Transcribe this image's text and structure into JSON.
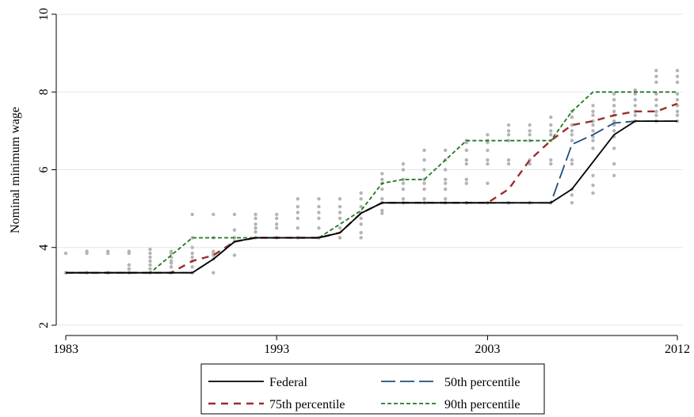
{
  "chart_data": {
    "type": "line",
    "title": "",
    "xlabel": "",
    "ylabel": "Nominal minimum wage",
    "xlim": [
      1983,
      2012
    ],
    "ylim": [
      2,
      10
    ],
    "xticks": [
      1983,
      1993,
      2003,
      2012
    ],
    "yticks": [
      2,
      4,
      6,
      8,
      10
    ],
    "grid": true,
    "legend_position": "bottom",
    "colors": {
      "federal": "#000000",
      "p50": "#1f4e79",
      "p75": "#9b2d2d",
      "p90": "#1e7a1e",
      "state_points": "#b4b4b4",
      "grid": "#e6e6e6"
    },
    "series": [
      {
        "name": "Federal",
        "key": "federal",
        "style": "solid",
        "points": [
          [
            1983,
            3.35
          ],
          [
            1984,
            3.35
          ],
          [
            1985,
            3.35
          ],
          [
            1986,
            3.35
          ],
          [
            1987,
            3.35
          ],
          [
            1988,
            3.35
          ],
          [
            1989,
            3.35
          ],
          [
            1990,
            3.7
          ],
          [
            1991,
            4.15
          ],
          [
            1992,
            4.25
          ],
          [
            1993,
            4.25
          ],
          [
            1994,
            4.25
          ],
          [
            1995,
            4.25
          ],
          [
            1996,
            4.38
          ],
          [
            1997,
            4.88
          ],
          [
            1998,
            5.15
          ],
          [
            1999,
            5.15
          ],
          [
            2000,
            5.15
          ],
          [
            2001,
            5.15
          ],
          [
            2002,
            5.15
          ],
          [
            2003,
            5.15
          ],
          [
            2004,
            5.15
          ],
          [
            2005,
            5.15
          ],
          [
            2006,
            5.15
          ],
          [
            2007,
            5.5
          ],
          [
            2008,
            6.2
          ],
          [
            2009,
            6.9
          ],
          [
            2010,
            7.25
          ],
          [
            2011,
            7.25
          ],
          [
            2012,
            7.25
          ]
        ]
      },
      {
        "name": "50th percentile",
        "key": "p50",
        "style": "longdash",
        "points": [
          [
            1983,
            3.35
          ],
          [
            1984,
            3.35
          ],
          [
            1985,
            3.35
          ],
          [
            1986,
            3.35
          ],
          [
            1987,
            3.35
          ],
          [
            1988,
            3.35
          ],
          [
            1989,
            3.35
          ],
          [
            1990,
            3.7
          ],
          [
            1991,
            4.15
          ],
          [
            1992,
            4.25
          ],
          [
            1993,
            4.25
          ],
          [
            1994,
            4.25
          ],
          [
            1995,
            4.25
          ],
          [
            1996,
            4.38
          ],
          [
            1997,
            4.88
          ],
          [
            1998,
            5.15
          ],
          [
            1999,
            5.15
          ],
          [
            2000,
            5.15
          ],
          [
            2001,
            5.15
          ],
          [
            2002,
            5.15
          ],
          [
            2003,
            5.15
          ],
          [
            2004,
            5.15
          ],
          [
            2005,
            5.15
          ],
          [
            2006,
            5.15
          ],
          [
            2007,
            6.65
          ],
          [
            2008,
            6.9
          ],
          [
            2009,
            7.2
          ],
          [
            2010,
            7.25
          ],
          [
            2011,
            7.25
          ],
          [
            2012,
            7.25
          ]
        ]
      },
      {
        "name": "75th percentile",
        "key": "p75",
        "style": "dash",
        "points": [
          [
            1983,
            3.35
          ],
          [
            1984,
            3.35
          ],
          [
            1985,
            3.35
          ],
          [
            1986,
            3.35
          ],
          [
            1987,
            3.35
          ],
          [
            1988,
            3.35
          ],
          [
            1989,
            3.65
          ],
          [
            1990,
            3.8
          ],
          [
            1991,
            4.15
          ],
          [
            1992,
            4.25
          ],
          [
            1993,
            4.25
          ],
          [
            1994,
            4.25
          ],
          [
            1995,
            4.25
          ],
          [
            1996,
            4.38
          ],
          [
            1997,
            4.88
          ],
          [
            1998,
            5.15
          ],
          [
            1999,
            5.15
          ],
          [
            2000,
            5.15
          ],
          [
            2001,
            5.15
          ],
          [
            2002,
            5.15
          ],
          [
            2003,
            5.15
          ],
          [
            2004,
            5.5
          ],
          [
            2005,
            6.25
          ],
          [
            2006,
            6.75
          ],
          [
            2007,
            7.15
          ],
          [
            2008,
            7.25
          ],
          [
            2009,
            7.4
          ],
          [
            2010,
            7.5
          ],
          [
            2011,
            7.5
          ],
          [
            2012,
            7.7
          ]
        ]
      },
      {
        "name": "90th percentile",
        "key": "p90",
        "style": "shortdash",
        "points": [
          [
            1983,
            3.35
          ],
          [
            1984,
            3.35
          ],
          [
            1985,
            3.35
          ],
          [
            1986,
            3.35
          ],
          [
            1987,
            3.35
          ],
          [
            1988,
            3.8
          ],
          [
            1989,
            4.25
          ],
          [
            1990,
            4.25
          ],
          [
            1991,
            4.25
          ],
          [
            1992,
            4.25
          ],
          [
            1993,
            4.25
          ],
          [
            1994,
            4.25
          ],
          [
            1995,
            4.25
          ],
          [
            1996,
            4.6
          ],
          [
            1997,
            4.95
          ],
          [
            1998,
            5.65
          ],
          [
            1999,
            5.75
          ],
          [
            2000,
            5.75
          ],
          [
            2001,
            6.25
          ],
          [
            2002,
            6.75
          ],
          [
            2003,
            6.75
          ],
          [
            2004,
            6.75
          ],
          [
            2005,
            6.75
          ],
          [
            2006,
            6.75
          ],
          [
            2007,
            7.5
          ],
          [
            2008,
            8.0
          ],
          [
            2009,
            8.0
          ],
          [
            2010,
            8.0
          ],
          [
            2011,
            8.0
          ],
          [
            2012,
            8.0
          ]
        ]
      }
    ],
    "legend_order": [
      "Federal",
      "50th percentile",
      "75th percentile",
      "90th percentile"
    ],
    "state_points": [
      {
        "x": 1983,
        "y": [
          3.35,
          3.35,
          3.35,
          3.85
        ]
      },
      {
        "x": 1984,
        "y": [
          3.35,
          3.35,
          3.35,
          3.85,
          3.9
        ]
      },
      {
        "x": 1985,
        "y": [
          3.35,
          3.35,
          3.35,
          3.85,
          3.9
        ]
      },
      {
        "x": 1986,
        "y": [
          3.35,
          3.35,
          3.35,
          3.45,
          3.55,
          3.85,
          3.9
        ]
      },
      {
        "x": 1987,
        "y": [
          3.35,
          3.35,
          3.45,
          3.55,
          3.65,
          3.75,
          3.85,
          3.95
        ]
      },
      {
        "x": 1988,
        "y": [
          3.35,
          3.35,
          3.5,
          3.6,
          3.65,
          3.75,
          3.85,
          3.9
        ]
      },
      {
        "x": 1989,
        "y": [
          3.35,
          3.5,
          3.65,
          3.75,
          3.85,
          4.0,
          4.25,
          4.85
        ]
      },
      {
        "x": 1990,
        "y": [
          3.35,
          3.7,
          3.8,
          3.85,
          3.9,
          4.25,
          4.85
        ]
      },
      {
        "x": 1991,
        "y": [
          3.8,
          4.15,
          4.25,
          4.25,
          4.45,
          4.85
        ]
      },
      {
        "x": 1992,
        "y": [
          4.25,
          4.25,
          4.25,
          4.4,
          4.5,
          4.6,
          4.75,
          4.85
        ]
      },
      {
        "x": 1993,
        "y": [
          4.25,
          4.25,
          4.25,
          4.5,
          4.6,
          4.75,
          4.85
        ]
      },
      {
        "x": 1994,
        "y": [
          4.25,
          4.25,
          4.25,
          4.5,
          4.75,
          4.9,
          5.05,
          5.25
        ]
      },
      {
        "x": 1995,
        "y": [
          4.25,
          4.25,
          4.25,
          4.5,
          4.75,
          4.9,
          5.05,
          5.25
        ]
      },
      {
        "x": 1996,
        "y": [
          4.25,
          4.25,
          4.25,
          4.5,
          4.75,
          4.9,
          5.05,
          5.25
        ]
      },
      {
        "x": 1997,
        "y": [
          4.25,
          4.38,
          4.6,
          4.75,
          4.9,
          5.05,
          5.25,
          5.4
        ]
      },
      {
        "x": 1998,
        "y": [
          4.88,
          4.95,
          5.15,
          5.25,
          5.5,
          5.65,
          5.75,
          5.9
        ]
      },
      {
        "x": 1999,
        "y": [
          5.15,
          5.15,
          5.25,
          5.5,
          5.65,
          5.75,
          6.0,
          6.15
        ]
      },
      {
        "x": 2000,
        "y": [
          5.15,
          5.15,
          5.25,
          5.5,
          5.65,
          5.75,
          6.0,
          6.25,
          6.5
        ]
      },
      {
        "x": 2001,
        "y": [
          5.15,
          5.15,
          5.25,
          5.5,
          5.65,
          5.75,
          6.0,
          6.25,
          6.5
        ]
      },
      {
        "x": 2002,
        "y": [
          5.15,
          5.15,
          5.65,
          5.75,
          6.15,
          6.25,
          6.5,
          6.7,
          6.75
        ]
      },
      {
        "x": 2003,
        "y": [
          5.15,
          5.15,
          5.65,
          6.15,
          6.25,
          6.5,
          6.7,
          6.75,
          6.9
        ]
      },
      {
        "x": 2004,
        "y": [
          5.15,
          5.15,
          6.15,
          6.25,
          6.75,
          6.9,
          7.0,
          7.15
        ]
      },
      {
        "x": 2005,
        "y": [
          5.15,
          5.15,
          6.15,
          6.25,
          6.75,
          6.9,
          7.0,
          7.15
        ]
      },
      {
        "x": 2006,
        "y": [
          5.15,
          5.15,
          6.15,
          6.25,
          6.75,
          6.9,
          7.0,
          7.15,
          7.35
        ]
      },
      {
        "x": 2007,
        "y": [
          5.15,
          5.35,
          5.5,
          6.15,
          6.25,
          6.75,
          6.9,
          7.0,
          7.15,
          7.35,
          7.5
        ]
      },
      {
        "x": 2008,
        "y": [
          5.4,
          5.6,
          5.85,
          6.55,
          6.75,
          6.85,
          7.0,
          7.15,
          7.25,
          7.4,
          7.5,
          7.65
        ]
      },
      {
        "x": 2009,
        "y": [
          5.85,
          6.15,
          6.55,
          6.85,
          7.0,
          7.15,
          7.25,
          7.4,
          7.5,
          7.65,
          7.8,
          7.95
        ]
      },
      {
        "x": 2010,
        "y": [
          7.25,
          7.25,
          7.4,
          7.5,
          7.65,
          7.8,
          7.95,
          8.05
        ]
      },
      {
        "x": 2011,
        "y": [
          7.25,
          7.25,
          7.4,
          7.5,
          7.65,
          7.8,
          7.95,
          8.25,
          8.4,
          8.55
        ]
      },
      {
        "x": 2012,
        "y": [
          7.25,
          7.25,
          7.4,
          7.5,
          7.65,
          7.8,
          7.95,
          8.25,
          8.4,
          8.55
        ]
      }
    ]
  }
}
